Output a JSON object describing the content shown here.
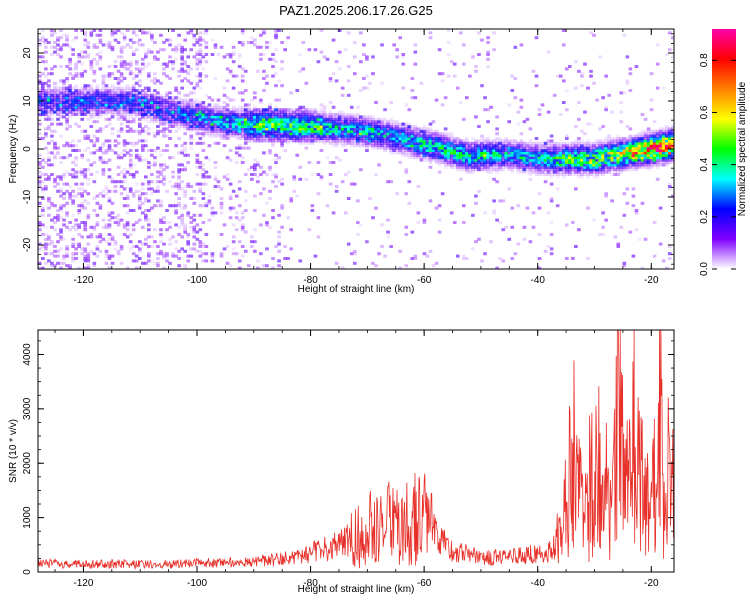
{
  "title": "PAZ1.2025.206.17.26.G25",
  "colors": {
    "snr_line": "#e8302a",
    "frame": "#000000",
    "colorbar_stops": [
      "#ffffff",
      "#8000ff",
      "#0000ff",
      "#00ffff",
      "#00ff00",
      "#ffff00",
      "#ff8000",
      "#ff0000",
      "#ff00aa"
    ]
  },
  "chart_data": [
    {
      "type": "heatmap",
      "xlabel": "Height of straight line (km)",
      "ylabel": "Frequency (Hz)",
      "xlim": [
        -128,
        -16
      ],
      "ylim": [
        -25,
        25
      ],
      "xticks": [
        -120,
        -100,
        -80,
        -60,
        -40,
        -20
      ],
      "yticks": [
        -20,
        -10,
        0,
        10,
        20
      ],
      "xtick_labels": [
        "-120",
        "-100",
        "-80",
        "-60",
        "-40",
        "-20"
      ],
      "ytick_labels": [
        "-20",
        "-10",
        "0",
        "10",
        "20"
      ],
      "colorbar": {
        "label": "Normalized spectral amplitude",
        "range": [
          0,
          0.92
        ],
        "ticks": [
          0.0,
          0.2,
          0.4,
          0.6,
          0.8
        ],
        "tick_labels": [
          "0.0",
          "0.2",
          "0.4",
          "0.6",
          "0.8"
        ]
      },
      "ridge": {
        "x": [
          -112,
          -105,
          -95,
          -85,
          -78,
          -72,
          -65,
          -58,
          -52,
          -45,
          -40,
          -35,
          -30,
          -25,
          -20,
          -16
        ],
        "freq": [
          10,
          8,
          5.5,
          5,
          4.5,
          4,
          2.5,
          0.5,
          -1.5,
          -1,
          -2,
          -2,
          -2,
          -1,
          0,
          1
        ],
        "amplitude": [
          0.2,
          0.2,
          0.3,
          0.35,
          0.35,
          0.3,
          0.3,
          0.35,
          0.35,
          0.3,
          0.3,
          0.4,
          0.45,
          0.5,
          0.7,
          0.75
        ]
      }
    },
    {
      "type": "line",
      "xlabel": "Height of straight line (km)",
      "ylabel": "SNR (10 * v/v)",
      "xlim": [
        -128,
        -16
      ],
      "ylim": [
        0,
        4450
      ],
      "xticks": [
        -120,
        -100,
        -80,
        -60,
        -40,
        -20
      ],
      "yticks": [
        0,
        1000,
        2000,
        3000,
        4000
      ],
      "xtick_labels": [
        "-120",
        "-100",
        "-80",
        "-60",
        "-40",
        "-20"
      ],
      "ytick_labels": [
        "0",
        "1000",
        "2000",
        "3000",
        "4000"
      ],
      "series": [
        {
          "x": [
            -128,
            -125,
            -120,
            -115,
            -110,
            -105,
            -100,
            -95,
            -90,
            -85,
            -82,
            -78,
            -75,
            -72,
            -70,
            -68,
            -66,
            -64,
            -62,
            -60,
            -58,
            -55,
            -52,
            -50,
            -47,
            -44,
            -41,
            -38,
            -36,
            -35,
            -34,
            -33,
            -32,
            -31,
            -30,
            -29,
            -28,
            -27,
            -26,
            -25,
            -24,
            -23,
            -22,
            -21,
            -20,
            -19,
            -18.3,
            -18,
            -17.5,
            -17,
            -16.5,
            -16
          ],
          "y": [
            190,
            150,
            140,
            150,
            140,
            150,
            160,
            170,
            190,
            250,
            320,
            400,
            500,
            650,
            800,
            1000,
            900,
            850,
            1000,
            1050,
            650,
            380,
            330,
            260,
            280,
            300,
            330,
            350,
            700,
            1200,
            2450,
            1500,
            1000,
            1800,
            1500,
            2100,
            1600,
            1300,
            3200,
            2200,
            1500,
            2700,
            1800,
            1500,
            1700,
            1800,
            4400,
            1800,
            600,
            1800,
            1500,
            1700
          ]
        }
      ]
    }
  ]
}
